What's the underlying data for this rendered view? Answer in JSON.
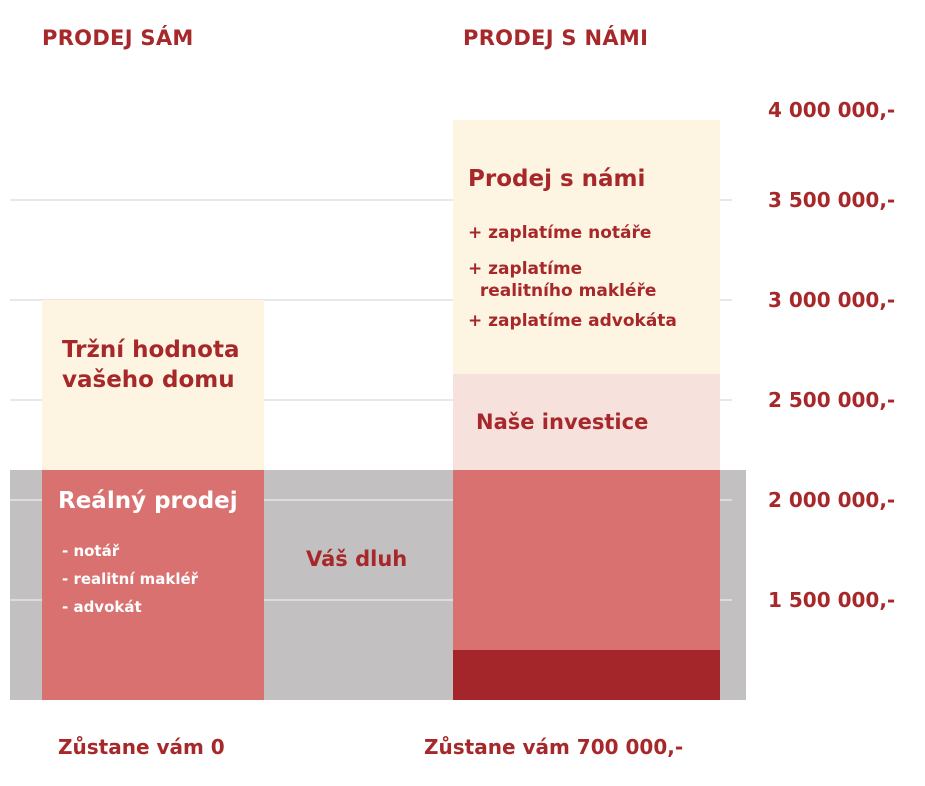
{
  "headings": {
    "left": "PRODEJ SÁM",
    "right": "PRODEJ S NÁMI"
  },
  "left_column": {
    "market_value_label": "Tržní hodnota\nvašeho domu",
    "real_sale_title": "Reálný prodej",
    "real_sale_items": [
      "- notář",
      "- realitní makléř",
      "- advokát"
    ]
  },
  "debt_label": "Váš dluh",
  "right_column": {
    "title": "Prodej s námi",
    "items": [
      "+ zaplatíme notáře",
      "+ zaplatíme\n  realitního makléře",
      "+ zaplatíme advokáta"
    ],
    "investment_label": "Naše investice"
  },
  "footers": {
    "left": "Zůstane vám 0",
    "right": "Zůstane vám 700 000,-"
  },
  "colors": {
    "accent_text": "#a6282a",
    "debt_band": "#c3c0c1",
    "market_value": "#fdf5e2",
    "real_sale": "#d97170",
    "investment": "#f6e1dd",
    "remainder": "#a4262b"
  },
  "chart_data": {
    "type": "bar",
    "categories": [
      "PRODEJ SÁM",
      "PRODEJ S NÁMI"
    ],
    "y_tick_labels": [
      "4 000 000,-",
      "3 500 000,-",
      "3 000 000,-",
      "2 500 000,-",
      "2 000 000,-",
      "1 500 000,-"
    ],
    "y_ticks": [
      4000000,
      3500000,
      3000000,
      2500000,
      2000000,
      1500000
    ],
    "ylim": [
      1000000,
      4000000
    ],
    "debt_band": [
      1000000,
      2150000
    ],
    "segments": [
      {
        "category": "PRODEJ SÁM",
        "name": "Reálný prodej",
        "from": 1000000,
        "to": 2150000
      },
      {
        "category": "PRODEJ SÁM",
        "name": "Tržní hodnota vašeho domu",
        "from": 2150000,
        "to": 3000000
      },
      {
        "category": "PRODEJ S NÁMI",
        "name": "",
        "from": 1000000,
        "to": 1250000
      },
      {
        "category": "PRODEJ S NÁMI",
        "name": "",
        "from": 1250000,
        "to": 2150000
      },
      {
        "category": "PRODEJ S NÁMI",
        "name": "Naše investice",
        "from": 2150000,
        "to": 2630000
      },
      {
        "category": "PRODEJ S NÁMI",
        "name": "Prodej s námi",
        "from": 2630000,
        "to": 3900000
      }
    ],
    "grid": true
  }
}
